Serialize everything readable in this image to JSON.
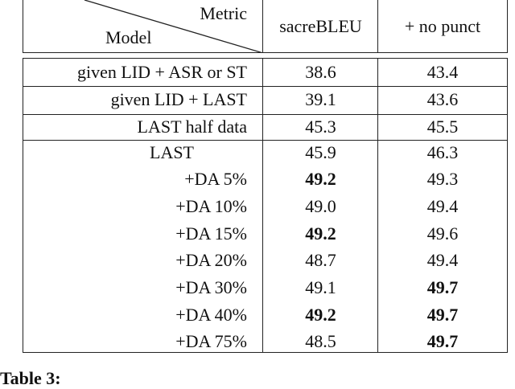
{
  "header": {
    "metric_label": "Metric",
    "model_label": "Model",
    "columns": [
      "sacreBLEU",
      "+ no punct"
    ]
  },
  "rows": [
    {
      "model": "given LID + ASR or ST",
      "sacrebleu": "38.6",
      "no_punct": "43.4",
      "bold": [
        false,
        false
      ]
    },
    {
      "model": "given LID + LAST",
      "sacrebleu": "39.1",
      "no_punct": "43.6",
      "bold": [
        false,
        false
      ]
    },
    {
      "model": "LAST half data",
      "sacrebleu": "45.3",
      "no_punct": "45.5",
      "bold": [
        false,
        false
      ]
    },
    {
      "model": "LAST",
      "sacrebleu": "45.9",
      "no_punct": "46.3",
      "bold": [
        false,
        false
      ]
    },
    {
      "model": "+DA   5%",
      "sacrebleu": "49.2",
      "no_punct": "49.3",
      "bold": [
        true,
        false
      ]
    },
    {
      "model": "+DA 10%",
      "sacrebleu": "49.0",
      "no_punct": "49.4",
      "bold": [
        false,
        false
      ]
    },
    {
      "model": "+DA 15%",
      "sacrebleu": "49.2",
      "no_punct": "49.6",
      "bold": [
        true,
        false
      ]
    },
    {
      "model": "+DA 20%",
      "sacrebleu": "48.7",
      "no_punct": "49.4",
      "bold": [
        false,
        false
      ]
    },
    {
      "model": "+DA 30%",
      "sacrebleu": "49.1",
      "no_punct": "49.7",
      "bold": [
        false,
        true
      ]
    },
    {
      "model": "+DA 40%",
      "sacrebleu": "49.2",
      "no_punct": "49.7",
      "bold": [
        true,
        true
      ]
    },
    {
      "model": "+DA 75%",
      "sacrebleu": "48.5",
      "no_punct": "49.7",
      "bold": [
        false,
        true
      ]
    }
  ],
  "caption": {
    "label": "Table 3:"
  }
}
